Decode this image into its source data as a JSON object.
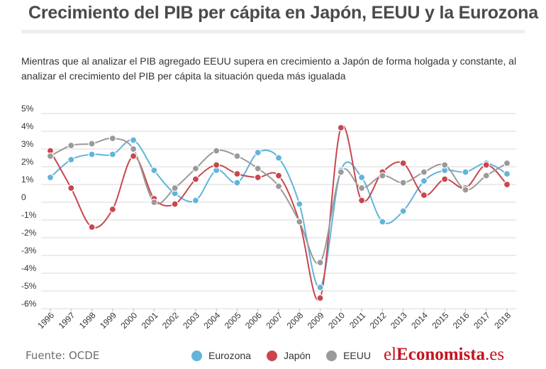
{
  "header": {
    "title": "Crecimiento del PIB per cápita en Japón, EEUU y la Eurozona",
    "subtitle": "Mientras que al analizar el PIB agregado EEUU supera en crecimiento a Japón de forma holgada y constante, al analizar el crecimiento del PIB per cápita la situación queda más igualada"
  },
  "footer": {
    "source": "Fuente: OCDE",
    "brand_prefix": "el",
    "brand_bold": "Economista",
    "brand_suffix": ".es"
  },
  "chart_data": {
    "type": "line",
    "x": [
      "1996",
      "1997",
      "1998",
      "1999",
      "2000",
      "2001",
      "2002",
      "2003",
      "2004",
      "2005",
      "2006",
      "2007",
      "2008",
      "2009",
      "2010",
      "2011",
      "2012",
      "2013",
      "2014",
      "2015",
      "2016",
      "2017",
      "2018"
    ],
    "y_ticks": [
      5,
      4,
      3,
      2,
      1,
      0,
      -1,
      -2,
      -3,
      -4,
      -5,
      -6
    ],
    "y_tick_labels": [
      "5%",
      "4%",
      "3%",
      "2%",
      "1%",
      "0",
      "-1%",
      "-2%",
      "-3%",
      "-4%",
      "-5%",
      "-6%"
    ],
    "ylim": [
      -6,
      5
    ],
    "grid": true,
    "legend_position": "bottom",
    "series": [
      {
        "name": "Eurozona",
        "color": "#62b4d9",
        "values": [
          1.4,
          2.4,
          2.7,
          2.7,
          3.5,
          1.8,
          0.5,
          0.1,
          1.8,
          1.1,
          2.8,
          2.5,
          -0.1,
          -4.8,
          1.8,
          1.4,
          -1.1,
          -0.5,
          1.2,
          1.8,
          1.7,
          2.2,
          1.6
        ]
      },
      {
        "name": "Japón",
        "color": "#c9464e",
        "values": [
          2.9,
          0.8,
          -1.4,
          -0.4,
          2.6,
          0.2,
          -0.1,
          1.3,
          2.1,
          1.6,
          1.4,
          1.5,
          -1.1,
          -5.4,
          4.2,
          0.1,
          1.7,
          2.2,
          0.4,
          1.3,
          0.8,
          2.1,
          1.0
        ]
      },
      {
        "name": "EEUU",
        "color": "#9a9a9a",
        "values": [
          2.6,
          3.2,
          3.3,
          3.6,
          3.0,
          0.0,
          0.8,
          1.9,
          2.9,
          2.6,
          1.9,
          0.9,
          -1.1,
          -3.4,
          1.7,
          0.8,
          1.5,
          1.1,
          1.7,
          2.1,
          0.7,
          1.5,
          2.2
        ]
      }
    ]
  }
}
